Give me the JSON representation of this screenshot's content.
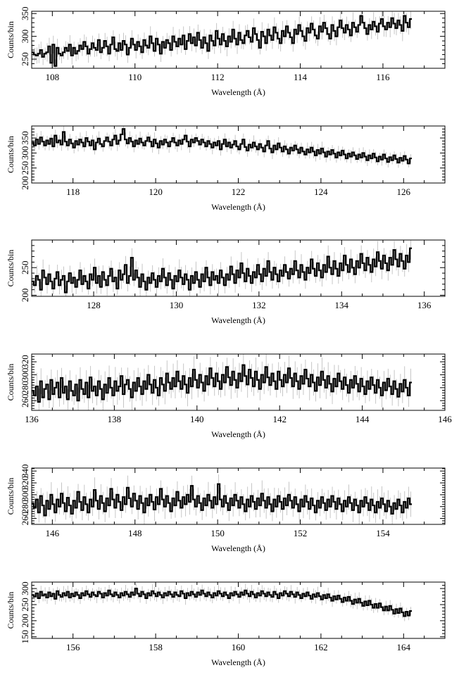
{
  "figure": {
    "xlabel": "Wavelength (Å)",
    "ylabel": "Counts/bin"
  },
  "chart_data": [
    {
      "type": "line",
      "style": "step-histogram-with-errorbars",
      "xlabel": "Wavelength (Å)",
      "ylabel": "Counts/bin",
      "xlim": [
        107.5,
        117.5
      ],
      "ylim": [
        230,
        355
      ],
      "xticks": [
        108,
        110,
        112,
        114,
        116
      ],
      "yticks": [
        250,
        300,
        350
      ],
      "x_start": 107.5,
      "bin_width": 0.05,
      "values": [
        265,
        260,
        258,
        262,
        270,
        255,
        262,
        265,
        278,
        242,
        282,
        235,
        275,
        262,
        258,
        265,
        275,
        268,
        282,
        258,
        275,
        262,
        268,
        280,
        272,
        288,
        278,
        262,
        272,
        285,
        275,
        270,
        292,
        265,
        275,
        290,
        278,
        262,
        282,
        298,
        272,
        268,
        285,
        270,
        290,
        282,
        260,
        275,
        295,
        282,
        270,
        288,
        278,
        265,
        292,
        280,
        275,
        300,
        285,
        268,
        295,
        282,
        262,
        288,
        275,
        292,
        285,
        270,
        300,
        288,
        278,
        295,
        282,
        302,
        272,
        290,
        305,
        285,
        298,
        280,
        308,
        292,
        275,
        298,
        285,
        268,
        302,
        290,
        280,
        312,
        295,
        282,
        305,
        290,
        278,
        300,
        288,
        315,
        295,
        282,
        308,
        292,
        285,
        302,
        312,
        298,
        288,
        318,
        305,
        292,
        275,
        310,
        300,
        285,
        315,
        302,
        292,
        320,
        308,
        295,
        285,
        312,
        300,
        322,
        308,
        298,
        285,
        315,
        305,
        325,
        312,
        300,
        290,
        318,
        308,
        328,
        315,
        302,
        295,
        322,
        310,
        330,
        318,
        305,
        295,
        325,
        312,
        300,
        320,
        335,
        318,
        308,
        325,
        315,
        302,
        330,
        320,
        310,
        325,
        345,
        330,
        318,
        305,
        325,
        315,
        332,
        322,
        310,
        328,
        338,
        322,
        315,
        330,
        320,
        340,
        328,
        318,
        335,
        325,
        312,
        345,
        330,
        320,
        338
      ]
    },
    {
      "type": "line",
      "style": "step-histogram-with-errorbars",
      "xlabel": "Wavelength (Å)",
      "ylabel": "Counts/bin",
      "xlim": [
        117,
        127
      ],
      "ylim": [
        200,
        390
      ],
      "xticks": [
        118,
        120,
        122,
        124,
        126
      ],
      "yticks": [
        200,
        250,
        300,
        350
      ],
      "x_start": 117,
      "bin_width": 0.05,
      "values": [
        335,
        325,
        345,
        330,
        352,
        338,
        325,
        342,
        330,
        348,
        322,
        358,
        335,
        342,
        328,
        370,
        338,
        325,
        345,
        332,
        318,
        340,
        328,
        345,
        335,
        322,
        350,
        338,
        325,
        342,
        312,
        335,
        348,
        330,
        322,
        340,
        352,
        338,
        325,
        345,
        358,
        330,
        342,
        362,
        380,
        345,
        332,
        350,
        338,
        322,
        342,
        330,
        348,
        335,
        325,
        340,
        352,
        338,
        322,
        345,
        332,
        318,
        340,
        328,
        345,
        335,
        322,
        338,
        350,
        335,
        325,
        342,
        330,
        345,
        358,
        338,
        322,
        345,
        335,
        350,
        340,
        328,
        345,
        335,
        322,
        340,
        330,
        318,
        335,
        325,
        340,
        312,
        330,
        345,
        322,
        335,
        318,
        328,
        340,
        322,
        312,
        330,
        345,
        320,
        308,
        328,
        318,
        335,
        322,
        312,
        330,
        318,
        305,
        325,
        340,
        315,
        302,
        325,
        312,
        332,
        318,
        305,
        322,
        312,
        298,
        318,
        308,
        325,
        312,
        300,
        318,
        305,
        295,
        312,
        302,
        318,
        305,
        292,
        310,
        298,
        315,
        302,
        288,
        305,
        295,
        310,
        298,
        285,
        302,
        292,
        308,
        295,
        282,
        298,
        288,
        302,
        292,
        280,
        295,
        285,
        300,
        288,
        276,
        292,
        282,
        298,
        285,
        272,
        288,
        278,
        295,
        282,
        270,
        286,
        276,
        292,
        280,
        268,
        284,
        274,
        290,
        278,
        265,
        282
      ]
    },
    {
      "type": "line",
      "style": "step-histogram-with-errorbars",
      "xlabel": "Wavelength (Å)",
      "ylabel": "Counts/bin",
      "xlim": [
        126.5,
        136.5
      ],
      "ylim": [
        198,
        300
      ],
      "xticks": [
        128,
        130,
        132,
        134,
        136
      ],
      "yticks": [
        200,
        250
      ],
      "x_start": 126.5,
      "bin_width": 0.05,
      "values": [
        225,
        218,
        235,
        228,
        210,
        245,
        232,
        220,
        238,
        225,
        212,
        230,
        242,
        218,
        228,
        235,
        205,
        225,
        240,
        222,
        232,
        215,
        228,
        245,
        220,
        235,
        225,
        212,
        238,
        228,
        250,
        222,
        235,
        215,
        242,
        228,
        218,
        235,
        248,
        225,
        232,
        212,
        245,
        228,
        238,
        255,
        222,
        235,
        268,
        228,
        245,
        232,
        215,
        238,
        225,
        210,
        232,
        222,
        240,
        228,
        215,
        235,
        225,
        248,
        232,
        218,
        240,
        228,
        212,
        235,
        225,
        245,
        232,
        220,
        238,
        228,
        210,
        235,
        222,
        242,
        228,
        215,
        238,
        225,
        250,
        232,
        218,
        242,
        228,
        235,
        222,
        245,
        232,
        218,
        238,
        228,
        252,
        238,
        222,
        245,
        232,
        258,
        240,
        225,
        248,
        235,
        222,
        242,
        232,
        255,
        238,
        225,
        248,
        235,
        262,
        242,
        228,
        250,
        238,
        225,
        245,
        235,
        255,
        242,
        230,
        248,
        238,
        262,
        245,
        232,
        255,
        242,
        228,
        250,
        240,
        265,
        248,
        235,
        258,
        245,
        232,
        255,
        242,
        270,
        250,
        238,
        262,
        248,
        235,
        258,
        245,
        272,
        255,
        242,
        265,
        250,
        238,
        262,
        250,
        275,
        258,
        245,
        268,
        255,
        242,
        265,
        252,
        278,
        262,
        248,
        272,
        258,
        245,
        268,
        255,
        282,
        265,
        252,
        275,
        262,
        248,
        272,
        260,
        285
      ]
    },
    {
      "type": "line",
      "style": "step-histogram-with-errorbars",
      "xlabel": "Wavelength (Å)",
      "ylabel": "Counts/bin",
      "xlim": [
        136,
        146
      ],
      "ylim": [
        245,
        332
      ],
      "xticks": [
        136,
        138,
        140,
        142,
        144,
        146
      ],
      "yticks": [
        260,
        280,
        300,
        320
      ],
      "x_start": 136,
      "bin_width": 0.05,
      "values": [
        275,
        268,
        282,
        258,
        290,
        265,
        278,
        285,
        262,
        292,
        270,
        280,
        288,
        265,
        295,
        272,
        282,
        262,
        290,
        275,
        268,
        285,
        260,
        292,
        278,
        270,
        288,
        265,
        296,
        275,
        282,
        268,
        290,
        278,
        262,
        285,
        272,
        295,
        280,
        268,
        290,
        275,
        282,
        298,
        270,
        285,
        292,
        278,
        265,
        288,
        275,
        295,
        282,
        270,
        290,
        278,
        300,
        285,
        272,
        292,
        280,
        268,
        295,
        285,
        275,
        302,
        288,
        278,
        295,
        282,
        305,
        290,
        278,
        298,
        285,
        272,
        295,
        282,
        308,
        292,
        280,
        300,
        288,
        275,
        298,
        285,
        310,
        295,
        282,
        302,
        290,
        278,
        300,
        288,
        312,
        296,
        284,
        305,
        292,
        280,
        302,
        290,
        315,
        298,
        285,
        308,
        295,
        282,
        305,
        292,
        278,
        300,
        288,
        312,
        296,
        284,
        302,
        290,
        278,
        305,
        292,
        282,
        300,
        288,
        310,
        295,
        282,
        302,
        290,
        278,
        298,
        286,
        308,
        294,
        282,
        300,
        288,
        275,
        296,
        284,
        305,
        292,
        280,
        298,
        286,
        274,
        294,
        282,
        302,
        290,
        278,
        296,
        284,
        272,
        292,
        280,
        298,
        286,
        274,
        294,
        282,
        270,
        290,
        278,
        296,
        284,
        272,
        292,
        280,
        268,
        288,
        276,
        294,
        282,
        270,
        290,
        278,
        266,
        286,
        274,
        292,
        280,
        268,
        288
      ]
    },
    {
      "type": "line",
      "style": "step-histogram-with-errorbars",
      "xlabel": "Wavelength (Å)",
      "ylabel": "Counts/bin",
      "xlim": [
        145.5,
        155.5
      ],
      "ylim": [
        250,
        345
      ],
      "xticks": [
        146,
        148,
        150,
        152,
        154
      ],
      "yticks": [
        260,
        280,
        300,
        320,
        340
      ],
      "x_start": 145.5,
      "bin_width": 0.05,
      "values": [
        285,
        278,
        292,
        270,
        298,
        282,
        265,
        290,
        276,
        300,
        284,
        270,
        292,
        280,
        302,
        286,
        272,
        295,
        282,
        268,
        290,
        278,
        305,
        288,
        274,
        296,
        284,
        270,
        292,
        280,
        308,
        290,
        276,
        298,
        286,
        272,
        294,
        282,
        310,
        292,
        278,
        300,
        288,
        274,
        296,
        284,
        312,
        294,
        280,
        302,
        290,
        276,
        298,
        286,
        270,
        294,
        282,
        300,
        288,
        275,
        296,
        284,
        310,
        292,
        280,
        298,
        286,
        272,
        294,
        282,
        305,
        290,
        278,
        296,
        284,
        300,
        288,
        315,
        292,
        280,
        298,
        286,
        274,
        294,
        282,
        300,
        290,
        278,
        296,
        284,
        318,
        292,
        280,
        298,
        286,
        274,
        294,
        282,
        300,
        290,
        278,
        296,
        284,
        272,
        292,
        280,
        298,
        288,
        276,
        294,
        282,
        302,
        290,
        278,
        296,
        284,
        272,
        292,
        280,
        298,
        288,
        276,
        294,
        282,
        300,
        290,
        278,
        296,
        284,
        272,
        292,
        280,
        298,
        288,
        276,
        294,
        282,
        270,
        290,
        278,
        296,
        286,
        274,
        292,
        280,
        298,
        288,
        276,
        294,
        284,
        272,
        290,
        280,
        296,
        286,
        274,
        292,
        282,
        270,
        290,
        280,
        296,
        286,
        274,
        292,
        282,
        270,
        288,
        278,
        294,
        284,
        272,
        290,
        280,
        268,
        286,
        276,
        292,
        282,
        270,
        288,
        278,
        294,
        284
      ]
    },
    {
      "type": "line",
      "style": "step-histogram-with-errorbars",
      "xlabel": "Wavelength (Å)",
      "ylabel": "Counts/bin",
      "xlim": [
        155,
        165
      ],
      "ylim": [
        145,
        320
      ],
      "xticks": [
        156,
        158,
        160,
        162,
        164
      ],
      "yticks": [
        150,
        200,
        250,
        300
      ],
      "x_start": 155,
      "bin_width": 0.05,
      "values": [
        280,
        275,
        285,
        270,
        290,
        278,
        282,
        272,
        288,
        276,
        284,
        268,
        292,
        280,
        274,
        286,
        278,
        290,
        272,
        284,
        276,
        288,
        280,
        270,
        286,
        278,
        292,
        282,
        274,
        288,
        280,
        276,
        290,
        284,
        272,
        286,
        278,
        294,
        282,
        276,
        288,
        280,
        272,
        286,
        278,
        290,
        282,
        274,
        288,
        280,
        300,
        284,
        276,
        290,
        282,
        270,
        286,
        278,
        292,
        284,
        276,
        288,
        280,
        272,
        286,
        278,
        290,
        282,
        274,
        288,
        280,
        276,
        292,
        284,
        270,
        286,
        278,
        290,
        282,
        274,
        288,
        280,
        294,
        284,
        276,
        288,
        280,
        272,
        286,
        278,
        292,
        284,
        276,
        288,
        280,
        270,
        286,
        278,
        290,
        282,
        274,
        288,
        280,
        294,
        284,
        276,
        290,
        282,
        272,
        286,
        278,
        292,
        284,
        276,
        288,
        280,
        274,
        290,
        282,
        270,
        286,
        278,
        292,
        284,
        276,
        290,
        282,
        274,
        288,
        280,
        270,
        284,
        276,
        288,
        278,
        268,
        282,
        274,
        286,
        276,
        266,
        280,
        270,
        282,
        272,
        262,
        276,
        266,
        278,
        268,
        258,
        272,
        262,
        274,
        262,
        252,
        266,
        256,
        268,
        256,
        246,
        260,
        248,
        262,
        250,
        240,
        252,
        240,
        254,
        242,
        232,
        244,
        232,
        246,
        234,
        222,
        236,
        224,
        238,
        226,
        214,
        228,
        216,
        230
      ]
    }
  ]
}
